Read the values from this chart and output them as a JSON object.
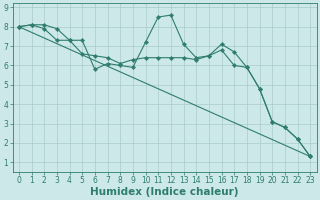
{
  "xlabel": "Humidex (Indice chaleur)",
  "xlim": [
    -0.5,
    23.5
  ],
  "ylim": [
    0.5,
    9.2
  ],
  "yticks": [
    1,
    2,
    3,
    4,
    5,
    6,
    7,
    8,
    9
  ],
  "xticks": [
    0,
    1,
    2,
    3,
    4,
    5,
    6,
    7,
    8,
    9,
    10,
    11,
    12,
    13,
    14,
    15,
    16,
    17,
    18,
    19,
    20,
    21,
    22,
    23
  ],
  "background_color": "#cde8e8",
  "grid_color": "#aacccc",
  "line_color": "#2e7d6e",
  "line1_y": [
    8.0,
    8.1,
    8.1,
    7.9,
    7.3,
    7.3,
    5.8,
    6.1,
    6.0,
    5.9,
    7.2,
    8.5,
    8.6,
    7.1,
    6.4,
    6.5,
    7.1,
    6.7,
    5.9,
    4.8,
    3.1,
    2.8,
    2.2,
    1.3
  ],
  "line2_y": [
    8.0,
    8.1,
    7.9,
    7.3,
    7.3,
    6.6,
    6.5,
    6.4,
    6.1,
    6.3,
    6.4,
    6.4,
    6.4,
    6.4,
    6.3,
    6.5,
    6.8,
    6.0,
    5.9,
    4.8,
    3.1,
    2.8,
    2.2,
    1.3
  ],
  "line3_y": [
    8.0,
    1.3
  ],
  "line3_x": [
    0,
    23
  ],
  "font_color": "#2e7d6e",
  "tick_fontsize": 5.5,
  "label_fontsize": 7.5
}
